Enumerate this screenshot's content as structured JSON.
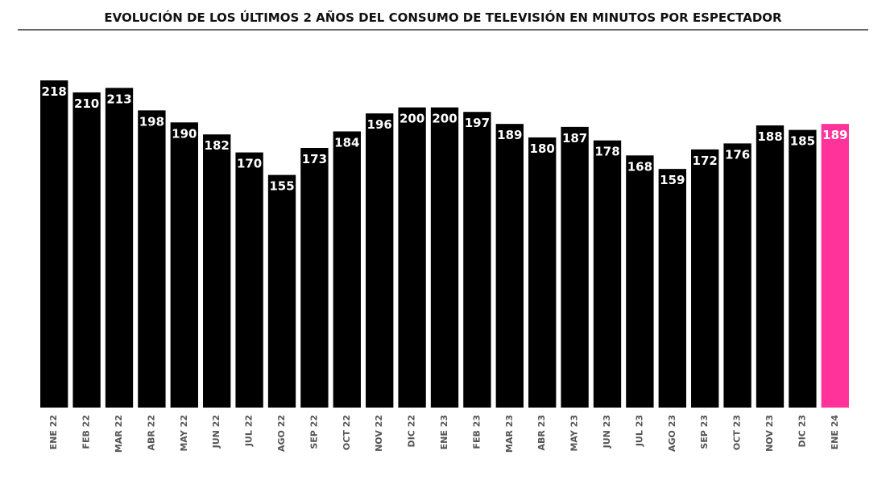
{
  "chart_data": {
    "type": "bar",
    "title": "EVOLUCIÓN DE LOS ÚLTIMOS 2 AÑOS DEL CONSUMO DE TELEVISIÓN EN MINUTOS POR ESPECTADOR",
    "categories": [
      "ENE 22",
      "FEB 22",
      "MAR 22",
      "ABR 22",
      "MAY 22",
      "JUN 22",
      "JUL 22",
      "AGO 22",
      "SEP 22",
      "OCT 22",
      "NOV 22",
      "DIC 22",
      "ENE 23",
      "FEB 23",
      "MAR 23",
      "ABR 23",
      "MAY 23",
      "JUN 23",
      "JUL 23",
      "AGO 23",
      "SEP 23",
      "OCT 23",
      "NOV 23",
      "DIC 23",
      "ENE 24"
    ],
    "values": [
      218,
      210,
      213,
      198,
      190,
      182,
      170,
      155,
      173,
      184,
      196,
      200,
      200,
      197,
      189,
      180,
      187,
      178,
      168,
      159,
      172,
      176,
      188,
      185,
      189
    ],
    "colors": [
      "#000000",
      "#000000",
      "#000000",
      "#000000",
      "#000000",
      "#000000",
      "#000000",
      "#000000",
      "#000000",
      "#000000",
      "#000000",
      "#000000",
      "#000000",
      "#000000",
      "#000000",
      "#000000",
      "#000000",
      "#000000",
      "#000000",
      "#000000",
      "#000000",
      "#000000",
      "#000000",
      "#000000",
      "#ff3399"
    ]
  }
}
